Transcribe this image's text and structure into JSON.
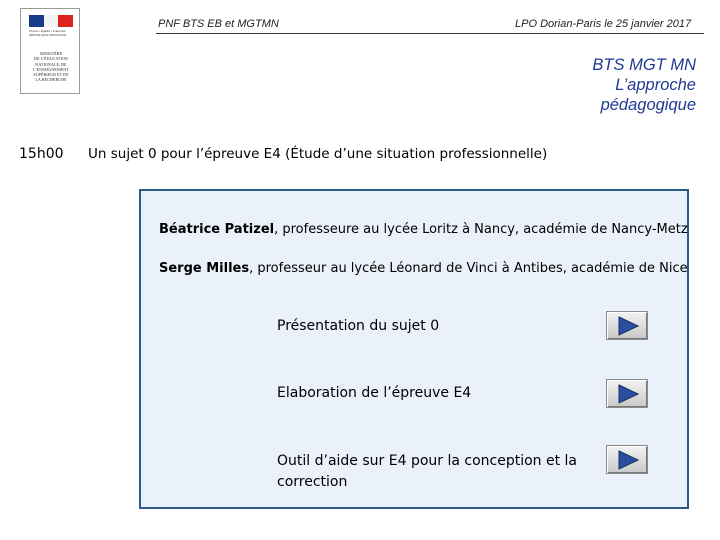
{
  "logo": {
    "motto": "Liberté • Égalité • Fraternité RÉPUBLIQUE FRANÇAISE",
    "ministry": "MINISTÈRE\nDE L'ÉDUCATION\nNATIONALE, DE\nL'ENSEIGNEMENT\nSUPÉRIEUR ET DE\nLA RECHERCHE"
  },
  "header": {
    "left": "PNF BTS EB et MGTMN",
    "right": "LPO Dorian-Paris le 25 janvier 2017"
  },
  "title": {
    "line1": "BTS MGT MN",
    "line2": "L’approche",
    "line3": "pédagogique"
  },
  "session": {
    "time": "15h00",
    "subject": "Un sujet 0 pour l’épreuve E4 (Étude d’une situation professionnelle)"
  },
  "speakers": [
    {
      "name": "Béatrice Patizel",
      "role": ", professeure au lycée Loritz à Nancy, académie de Nancy-Metz"
    },
    {
      "name": "Serge Milles",
      "role": ", professeur au lycée Léonard de Vinci à Antibes, académie de Nice"
    }
  ],
  "items": [
    {
      "label": "Présentation du sujet 0"
    },
    {
      "label": "Elaboration de l’épreuve E4"
    },
    {
      "label": "Outil d’aide sur E4 pour la conception et la correction"
    }
  ],
  "colors": {
    "title": "#1f3a93",
    "panel_border": "#2b5a86",
    "panel_bg": "#eaf1fa",
    "play_arrow": "#2a4fa0"
  }
}
